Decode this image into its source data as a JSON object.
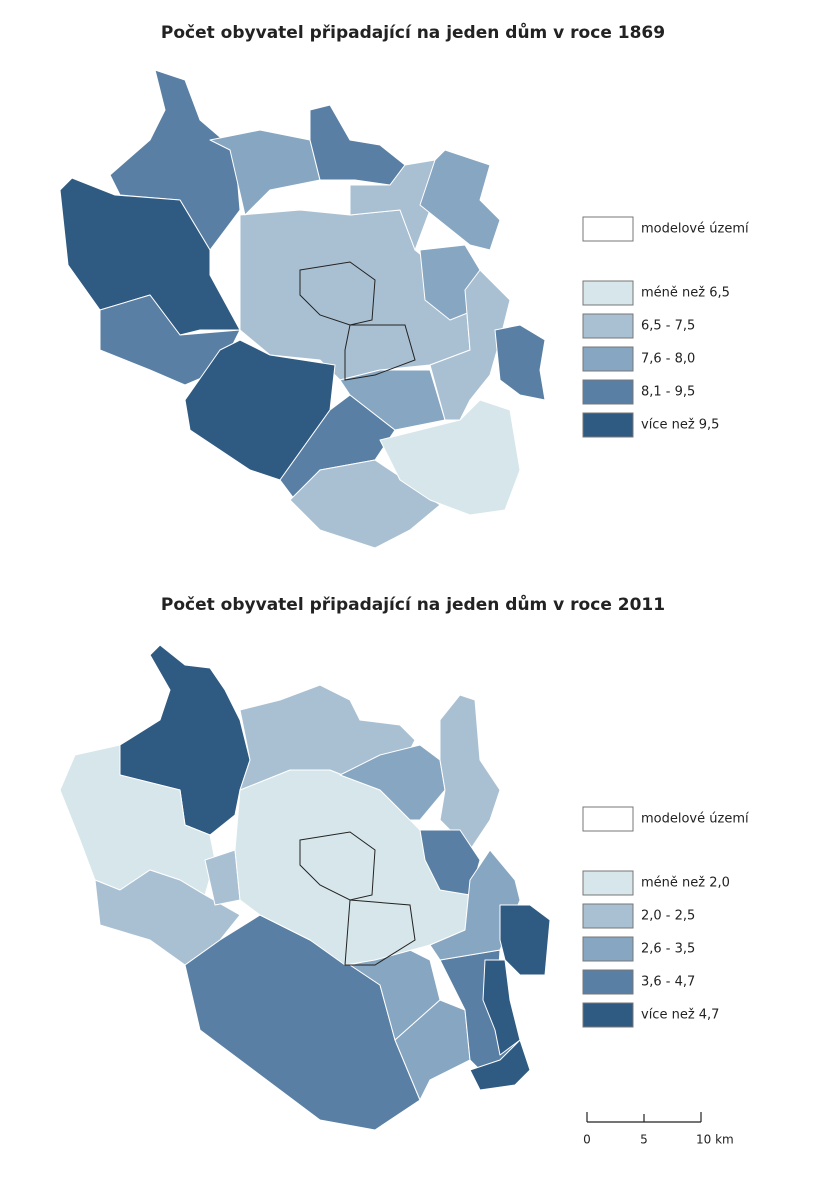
{
  "maps": [
    {
      "title": "Počet obyvatel připadající na jeden dům v roce 1869",
      "legend": {
        "model_area": "modelové území",
        "classes": [
          {
            "label": "méně než 6,5",
            "color": "#d6e6ea"
          },
          {
            "label": "6,5 - 7,5",
            "color": "#a9c0d3"
          },
          {
            "label": "7,6 - 8,0",
            "color": "#87a6c1"
          },
          {
            "label": "8,1 - 9,5",
            "color": "#5a7fa4"
          },
          {
            "label": "více než 9,5",
            "color": "#2f5a81"
          }
        ]
      }
    },
    {
      "title": "Počet obyvatel připadající na jeden dům v roce 2011",
      "legend": {
        "model_area": "modelové území",
        "classes": [
          {
            "label": "méně než 2,0",
            "color": "#d6e6ea"
          },
          {
            "label": "2,0 - 2,5",
            "color": "#a9c0d3"
          },
          {
            "label": "2,6 - 3,5",
            "color": "#87a6c1"
          },
          {
            "label": "3,6 - 4,7",
            "color": "#5a7fa4"
          },
          {
            "label": "více než 4,7",
            "color": "#2f5a81"
          }
        ]
      }
    }
  ],
  "scale_bar": [
    "0",
    "5",
    "10 km"
  ]
}
